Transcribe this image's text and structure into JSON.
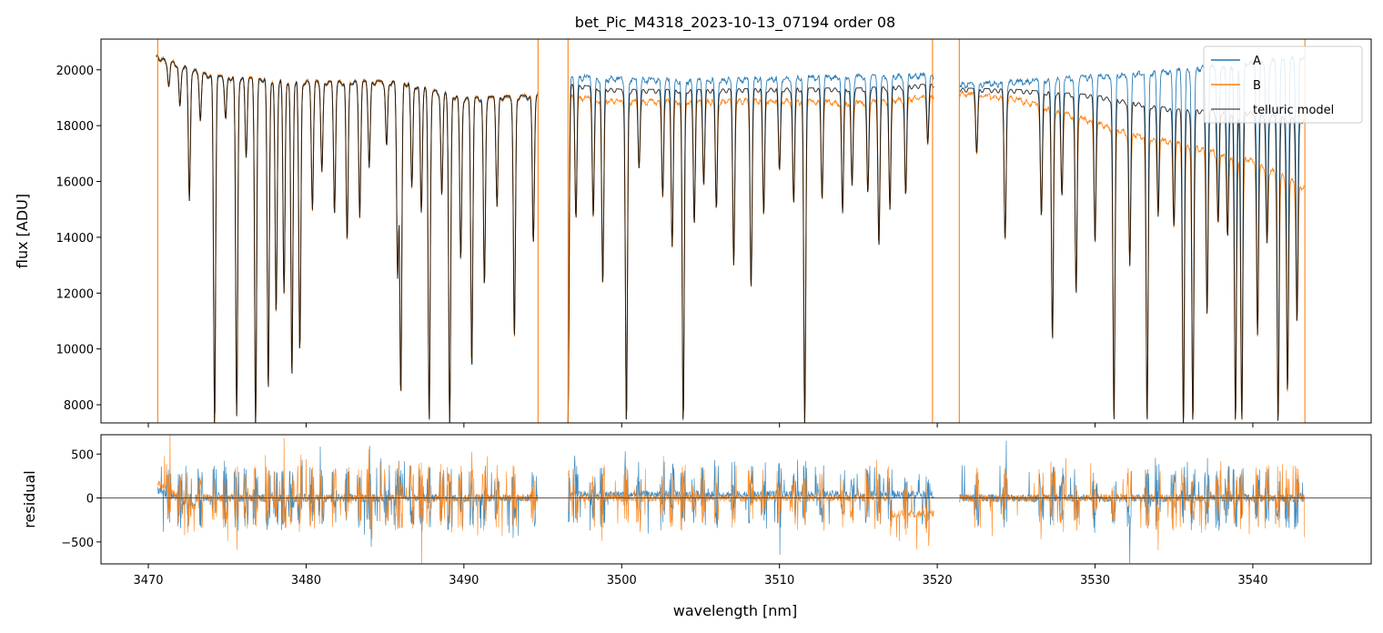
{
  "chart_data": {
    "type": "line",
    "title": "bet_Pic_M4318_2023-10-13_07194  order 08",
    "xlabel": "wavelength [nm]",
    "xlim": [
      3467,
      3547.5
    ],
    "x_ticks": [
      "3470",
      "3480",
      "3490",
      "3500",
      "3510",
      "3520",
      "3530",
      "3540"
    ],
    "x_tick_values": [
      3470,
      3480,
      3490,
      3500,
      3510,
      3520,
      3530,
      3540
    ],
    "panels": [
      {
        "ylabel": "flux [ADU]",
        "ylim": [
          7350,
          21100
        ],
        "y_ticks": [
          "8000",
          "10000",
          "12000",
          "14000",
          "16000",
          "18000",
          "20000"
        ],
        "y_tick_values": [
          8000,
          10000,
          12000,
          14000,
          16000,
          18000,
          20000
        ],
        "segments": [
          [
            3470.5,
            3494.7
          ],
          [
            3496.6,
            3519.8
          ],
          [
            3521.4,
            3543.3
          ]
        ],
        "legend": {
          "position": "upper right",
          "entries": [
            "A",
            "B",
            "telluric model"
          ]
        },
        "series": [
          {
            "name": "A",
            "color": "#1f77b4",
            "continuum": [
              [
                3470.5,
                20500
              ],
              [
                3474,
                19800
              ],
              [
                3480,
                19600
              ],
              [
                3486,
                19600
              ],
              [
                3490,
                19000
              ],
              [
                3494.7,
                19100
              ],
              [
                3496.6,
                19800
              ],
              [
                3500,
                19700
              ],
              [
                3505,
                19650
              ],
              [
                3510,
                19750
              ],
              [
                3515,
                19800
              ],
              [
                3519.8,
                19850
              ],
              [
                3521.4,
                19500
              ],
              [
                3525,
                19600
              ],
              [
                3530,
                19800
              ],
              [
                3535,
                20000
              ],
              [
                3540,
                20300
              ],
              [
                3543.3,
                20500
              ]
            ]
          },
          {
            "name": "B",
            "color": "#ff7f0e",
            "continuum": [
              [
                3470.5,
                20500
              ],
              [
                3474,
                19800
              ],
              [
                3480,
                19600
              ],
              [
                3486,
                19600
              ],
              [
                3490,
                19000
              ],
              [
                3494.7,
                19100
              ],
              [
                3496.6,
                19100
              ],
              [
                3500,
                18900
              ],
              [
                3505,
                18900
              ],
              [
                3510,
                18950
              ],
              [
                3515,
                18850
              ],
              [
                3519.8,
                19100
              ],
              [
                3521.4,
                19200
              ],
              [
                3525,
                19000
              ],
              [
                3528,
                18500
              ],
              [
                3532,
                17800
              ],
              [
                3536,
                17300
              ],
              [
                3540,
                16800
              ],
              [
                3543.3,
                15800
              ]
            ]
          },
          {
            "name": "telluric model",
            "color": "#000000",
            "continuum": [
              [
                3470.5,
                20500
              ],
              [
                3474,
                19800
              ],
              [
                3480,
                19600
              ],
              [
                3486,
                19600
              ],
              [
                3490,
                19000
              ],
              [
                3494.7,
                19100
              ],
              [
                3496.6,
                19500
              ],
              [
                3500,
                19300
              ],
              [
                3505,
                19300
              ],
              [
                3510,
                19350
              ],
              [
                3515,
                19350
              ],
              [
                3519.8,
                19500
              ],
              [
                3521.4,
                19350
              ],
              [
                3525,
                19300
              ],
              [
                3530,
                19100
              ],
              [
                3535,
                18600
              ],
              [
                3540,
                18500
              ],
              [
                3543.3,
                18200
              ]
            ]
          }
        ],
        "absorption_lines": [
          [
            3471.3,
            19400
          ],
          [
            3472.0,
            18700
          ],
          [
            3472.6,
            15300
          ],
          [
            3473.3,
            18200
          ],
          [
            3474.2,
            7350
          ],
          [
            3474.9,
            18300
          ],
          [
            3475.6,
            7600
          ],
          [
            3476.2,
            17000
          ],
          [
            3476.8,
            7350
          ],
          [
            3477.6,
            8500
          ],
          [
            3478.1,
            11300
          ],
          [
            3478.6,
            12000
          ],
          [
            3479.1,
            9000
          ],
          [
            3479.6,
            9900
          ],
          [
            3480.4,
            15000
          ],
          [
            3481.0,
            16400
          ],
          [
            3481.8,
            14900
          ],
          [
            3482.6,
            13900
          ],
          [
            3483.4,
            14800
          ],
          [
            3484.0,
            16600
          ],
          [
            3485.1,
            17300
          ],
          [
            3485.8,
            12600
          ],
          [
            3486.0,
            8500
          ],
          [
            3486.7,
            15800
          ],
          [
            3487.3,
            15000
          ],
          [
            3487.8,
            7350
          ],
          [
            3488.6,
            15500
          ],
          [
            3489.1,
            7350
          ],
          [
            3489.8,
            13200
          ],
          [
            3490.5,
            9400
          ],
          [
            3491.3,
            12300
          ],
          [
            3492.1,
            15200
          ],
          [
            3493.2,
            10400
          ],
          [
            3494.4,
            13900
          ],
          [
            3496.6,
            7350
          ],
          [
            3497.1,
            14800
          ],
          [
            3498.2,
            14800
          ],
          [
            3498.8,
            12300
          ],
          [
            3500.3,
            7350
          ],
          [
            3501.1,
            16600
          ],
          [
            3502.6,
            15600
          ],
          [
            3503.2,
            13800
          ],
          [
            3503.9,
            7350
          ],
          [
            3504.6,
            14600
          ],
          [
            3505.2,
            16000
          ],
          [
            3506.0,
            15000
          ],
          [
            3507.1,
            13000
          ],
          [
            3508.2,
            12300
          ],
          [
            3509.0,
            14800
          ],
          [
            3510.0,
            16400
          ],
          [
            3510.9,
            15200
          ],
          [
            3511.6,
            7350
          ],
          [
            3512.7,
            15500
          ],
          [
            3514.0,
            14900
          ],
          [
            3514.6,
            15900
          ],
          [
            3515.6,
            15600
          ],
          [
            3516.3,
            13800
          ],
          [
            3517.0,
            15000
          ],
          [
            3518.0,
            15500
          ],
          [
            3519.4,
            17500
          ],
          [
            3522.5,
            17100
          ],
          [
            3524.3,
            13900
          ],
          [
            3526.6,
            14800
          ],
          [
            3527.3,
            10300
          ],
          [
            3527.9,
            15600
          ],
          [
            3528.8,
            12000
          ],
          [
            3530.0,
            13900
          ],
          [
            3531.2,
            7350
          ],
          [
            3532.2,
            13000
          ],
          [
            3533.3,
            7350
          ],
          [
            3534.0,
            14900
          ],
          [
            3535.0,
            14500
          ],
          [
            3535.6,
            7350
          ],
          [
            3536.2,
            7350
          ],
          [
            3537.1,
            11300
          ],
          [
            3537.8,
            14500
          ],
          [
            3538.4,
            14000
          ],
          [
            3538.9,
            7350
          ],
          [
            3539.3,
            7350
          ],
          [
            3540.3,
            10500
          ],
          [
            3540.9,
            13800
          ],
          [
            3541.6,
            7350
          ],
          [
            3542.2,
            8500
          ],
          [
            3542.8,
            11000
          ]
        ],
        "spikes": [
          3470.6,
          3494.7,
          3496.6,
          3519.7,
          3521.4,
          3543.3
        ]
      },
      {
        "ylabel": "residual",
        "ylim": [
          -750,
          720
        ],
        "y_ticks": [
          "−500",
          "0",
          "500"
        ],
        "y_tick_values": [
          -500,
          0,
          500
        ],
        "zero_line": true
      }
    ]
  }
}
